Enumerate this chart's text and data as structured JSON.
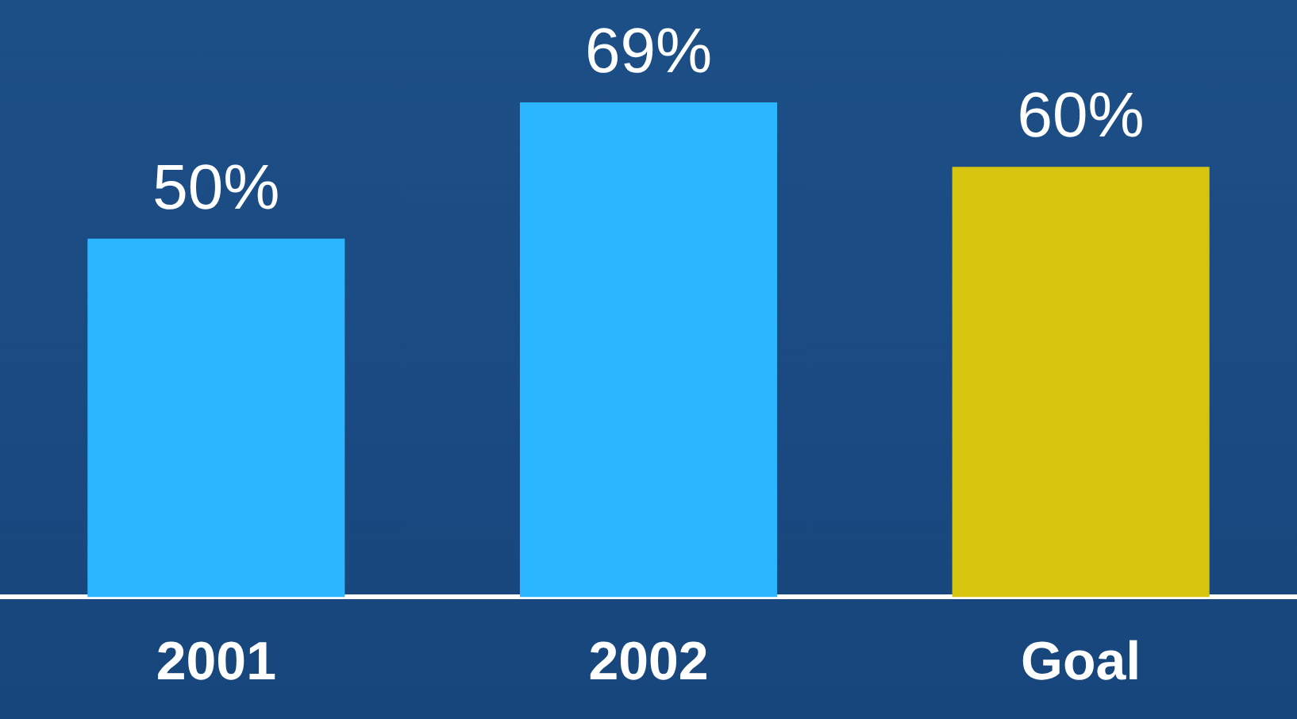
{
  "chart_data": {
    "type": "bar",
    "categories": [
      "2001",
      "2002",
      "Goal"
    ],
    "values": [
      50,
      69,
      60
    ],
    "colors": [
      "#2cb6ff",
      "#2cb6ff",
      "#d7c40e"
    ],
    "value_labels": [
      "50%",
      "69%",
      "60%"
    ]
  }
}
